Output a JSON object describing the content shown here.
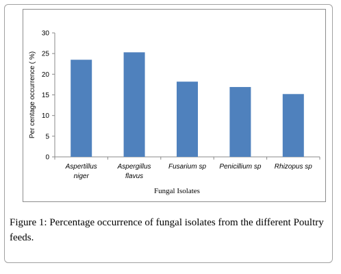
{
  "chart_data": {
    "type": "bar",
    "categories": [
      "Aspertillus niger",
      "Aspergillus flavus",
      "Fusarium sp",
      "Penicillium sp",
      "Rhizopus sp"
    ],
    "category_lines": [
      [
        "Aspertillus",
        "niger"
      ],
      [
        "Aspergillus",
        "flavus"
      ],
      [
        "Fusarium sp"
      ],
      [
        "Penicillium sp"
      ],
      [
        "Rhizopus sp"
      ]
    ],
    "values": [
      23.5,
      25.3,
      18.2,
      16.9,
      15.2
    ],
    "xlabel": "Fungal Isolates",
    "ylabel": "Per centage occurrence ( %)",
    "ylim": [
      0,
      30
    ],
    "yticks": [
      0,
      5,
      10,
      15,
      20,
      25,
      30
    ],
    "bar_color": "#4f81bd",
    "grid": false,
    "legend": "none"
  },
  "caption": {
    "label": "Figure 1:",
    "text": " Percentage occurrence of fungal isolates from the different Poultry feeds."
  }
}
